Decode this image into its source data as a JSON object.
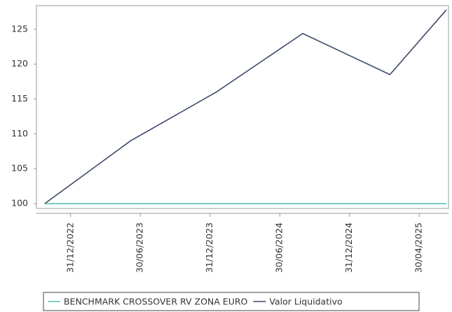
{
  "chart_data": {
    "type": "line",
    "x": [
      -0.37,
      0.86,
      2.09,
      3.33,
      4.58,
      5.39
    ],
    "xlim": [
      -0.49,
      5.42
    ],
    "xticks": [
      {
        "value": 0,
        "label": "31/12/2022"
      },
      {
        "value": 1,
        "label": "30/06/2023"
      },
      {
        "value": 2,
        "label": "31/12/2023"
      },
      {
        "value": 3,
        "label": "30/06/2024"
      },
      {
        "value": 4,
        "label": "31/12/2024"
      },
      {
        "value": 5,
        "label": "30/04/2025"
      }
    ],
    "ylim": [
      99.3,
      128.4
    ],
    "yticks": [
      100,
      105,
      110,
      115,
      120,
      125
    ],
    "series": [
      {
        "name": "BENCHMARK CROSSOVER RV ZONA EURO",
        "color": "#5bbfb3",
        "values": [
          100,
          100,
          100,
          100,
          100,
          100
        ]
      },
      {
        "name": "Valor Liquidativo",
        "color": "#3d4a6b",
        "values": [
          100,
          109,
          116,
          124.4,
          118.5,
          127.8
        ]
      }
    ],
    "legend": "bottom"
  }
}
